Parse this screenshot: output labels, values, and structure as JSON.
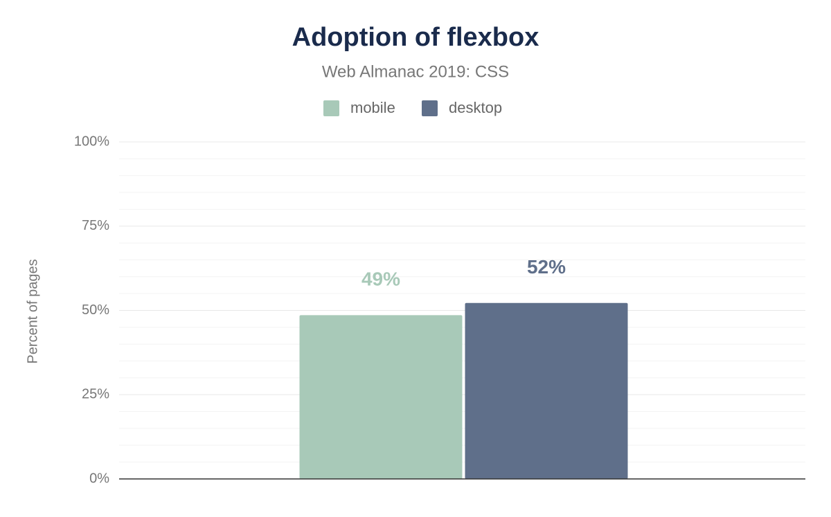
{
  "chart_data": {
    "type": "bar",
    "title": "Adoption of flexbox",
    "subtitle": "Web Almanac 2019: CSS",
    "y_label": "Percent of pages",
    "categories": [
      null
    ],
    "series": [
      {
        "name": "mobile",
        "color": "#a8c9b8",
        "values": [
          48.6
        ],
        "value_labels": [
          "49%"
        ]
      },
      {
        "name": "desktop",
        "color": "#5f6f8a",
        "values": [
          52.2
        ],
        "value_labels": [
          "52%"
        ]
      }
    ],
    "ylim": [
      0,
      100
    ],
    "yticks": [
      {
        "value": 0,
        "label": "0%"
      },
      {
        "value": 25,
        "label": "25%"
      },
      {
        "value": 50,
        "label": "50%"
      },
      {
        "value": 75,
        "label": "75%"
      },
      {
        "value": 100,
        "label": "100%"
      }
    ],
    "minor_yticks": [
      5,
      10,
      15,
      20,
      30,
      35,
      40,
      45,
      55,
      60,
      65,
      70,
      80,
      85,
      90,
      95
    ],
    "grid": true,
    "legend": "top"
  }
}
